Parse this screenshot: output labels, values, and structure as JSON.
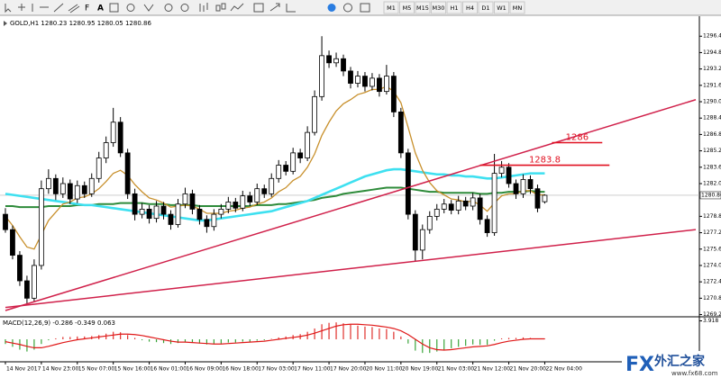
{
  "toolbar": {
    "timeframes": [
      "M1",
      "M5",
      "M15",
      "M30",
      "H1",
      "H4",
      "D1",
      "W1",
      "MN"
    ]
  },
  "watermark": {
    "logo": "FX",
    "name": "外汇之家",
    "url": "www.fx68.com"
  },
  "chart_data": {
    "type": "candlestick",
    "title": "GOLD,H1",
    "xlim": [
      -0.75,
      96.5
    ],
    "ylim": [
      1269.16,
      1298.18
    ],
    "yticks": [
      {
        "value": 1269.2,
        "label": "1269.20"
      },
      {
        "value": 1270.8,
        "label": "1270.80"
      },
      {
        "value": 1272.4,
        "label": "1272.40"
      },
      {
        "value": 1274,
        "label": "1274.00"
      },
      {
        "value": 1275.6,
        "label": "1275.60"
      },
      {
        "value": 1277.2,
        "label": "1277.20"
      },
      {
        "value": 1278.8,
        "label": "1278.80"
      },
      {
        "value": 1282,
        "label": "1282.00"
      },
      {
        "value": 1283.6,
        "label": "1283.60"
      },
      {
        "value": 1285.2,
        "label": "1285.20"
      },
      {
        "value": 1286.8,
        "label": "1286.80"
      },
      {
        "value": 1288.4,
        "label": "1288.40"
      },
      {
        "value": 1290,
        "label": "1290.00"
      },
      {
        "value": 1291.6,
        "label": "1291.60"
      },
      {
        "value": 1293.2,
        "label": "1293.20"
      },
      {
        "value": 1294.8,
        "label": "1294.80"
      },
      {
        "value": 1296.4,
        "label": "1296.40"
      }
    ],
    "categories": [
      "14 Nov 2017",
      null,
      null,
      null,
      null,
      "14 Nov 23:00",
      null,
      null,
      null,
      null,
      "15 Nov 07:00",
      null,
      null,
      null,
      null,
      "15 Nov 16:00",
      null,
      null,
      null,
      null,
      "16 Nov 01:00",
      null,
      null,
      null,
      null,
      "16 Nov 09:00",
      null,
      null,
      null,
      null,
      "16 Nov 18:00",
      null,
      null,
      null,
      null,
      "17 Nov 03:00",
      null,
      null,
      null,
      null,
      "17 Nov 11:00",
      null,
      null,
      null,
      null,
      "17 Nov 20:00",
      null,
      null,
      null,
      null,
      "20 Nov 11:00",
      null,
      null,
      null,
      null,
      "20 Nov 19:00",
      null,
      null,
      null,
      null,
      "21 Nov 03:00",
      null,
      null,
      null,
      null,
      "21 Nov 12:00",
      null,
      null,
      null,
      null,
      "21 Nov 20:00",
      null,
      null,
      null,
      null,
      "22 Nov 04:00"
    ],
    "up_color": "#ffffff",
    "down_color": "#000000",
    "edge_color": "#000000",
    "ohlc": [
      [
        1279.0,
        1279.6,
        1277.2,
        1277.5
      ],
      [
        1277.5,
        1277.9,
        1274.6,
        1275.0
      ],
      [
        1275.0,
        1275.4,
        1272.0,
        1272.5
      ],
      [
        1272.5,
        1273.0,
        1270.2,
        1270.8
      ],
      [
        1270.8,
        1274.6,
        1270.5,
        1274.0
      ],
      [
        1274.0,
        1282.3,
        1273.6,
        1281.5
      ],
      [
        1281.5,
        1283.4,
        1281.0,
        1282.5
      ],
      [
        1282.5,
        1282.9,
        1280.4,
        1281.0
      ],
      [
        1281.0,
        1282.6,
        1280.6,
        1282.0
      ],
      [
        1282.0,
        1282.4,
        1280.0,
        1280.5
      ],
      [
        1280.5,
        1282.3,
        1280.1,
        1281.8
      ],
      [
        1281.8,
        1282.2,
        1280.6,
        1281.0
      ],
      [
        1281.0,
        1283.0,
        1280.7,
        1282.5
      ],
      [
        1282.5,
        1285.1,
        1282.1,
        1284.5
      ],
      [
        1284.5,
        1286.6,
        1284.0,
        1286.0
      ],
      [
        1286.0,
        1289.4,
        1285.6,
        1288.0
      ],
      [
        1288.0,
        1288.5,
        1284.6,
        1285.0
      ],
      [
        1285.0,
        1285.4,
        1280.5,
        1281.0
      ],
      [
        1281.0,
        1281.5,
        1278.4,
        1279.0
      ],
      [
        1279.0,
        1280.1,
        1278.6,
        1279.5
      ],
      [
        1279.5,
        1279.9,
        1278.1,
        1278.6
      ],
      [
        1278.6,
        1280.3,
        1278.2,
        1279.8
      ],
      [
        1279.8,
        1280.2,
        1278.5,
        1279.0
      ],
      [
        1279.0,
        1279.4,
        1277.5,
        1278.0
      ],
      [
        1278.0,
        1280.5,
        1277.7,
        1280.0
      ],
      [
        1280.0,
        1281.6,
        1279.6,
        1281.0
      ],
      [
        1281.0,
        1281.4,
        1279.0,
        1279.5
      ],
      [
        1279.5,
        1279.9,
        1278.0,
        1278.5
      ],
      [
        1278.5,
        1278.9,
        1277.2,
        1277.8
      ],
      [
        1277.8,
        1279.5,
        1277.4,
        1279.0
      ],
      [
        1279.0,
        1280.0,
        1278.6,
        1279.5
      ],
      [
        1279.5,
        1280.7,
        1279.1,
        1280.2
      ],
      [
        1280.2,
        1280.6,
        1279.2,
        1279.6
      ],
      [
        1279.6,
        1281.3,
        1279.3,
        1280.8
      ],
      [
        1280.8,
        1281.2,
        1279.8,
        1280.2
      ],
      [
        1280.2,
        1282.0,
        1279.9,
        1281.5
      ],
      [
        1281.5,
        1281.9,
        1280.6,
        1281.0
      ],
      [
        1281.0,
        1283.0,
        1280.7,
        1282.5
      ],
      [
        1282.5,
        1284.3,
        1282.1,
        1283.8
      ],
      [
        1283.8,
        1284.2,
        1282.8,
        1283.2
      ],
      [
        1283.2,
        1285.5,
        1282.9,
        1285.0
      ],
      [
        1285.0,
        1285.4,
        1284.0,
        1284.5
      ],
      [
        1284.5,
        1287.6,
        1284.2,
        1287.0
      ],
      [
        1287.0,
        1291.1,
        1286.7,
        1290.5
      ],
      [
        1290.5,
        1296.4,
        1290.1,
        1294.5
      ],
      [
        1294.5,
        1295.0,
        1293.3,
        1293.8
      ],
      [
        1293.8,
        1294.8,
        1293.4,
        1294.2
      ],
      [
        1294.2,
        1294.6,
        1292.5,
        1293.0
      ],
      [
        1293.0,
        1293.4,
        1291.3,
        1291.8
      ],
      [
        1291.8,
        1293.0,
        1291.4,
        1292.5
      ],
      [
        1292.5,
        1292.9,
        1291.0,
        1291.5
      ],
      [
        1291.5,
        1292.8,
        1291.1,
        1292.3
      ],
      [
        1292.3,
        1292.7,
        1290.5,
        1291.0
      ],
      [
        1291.0,
        1293.6,
        1290.7,
        1292.5
      ],
      [
        1292.5,
        1292.9,
        1288.5,
        1289.0
      ],
      [
        1289.0,
        1289.4,
        1284.5,
        1285.0
      ],
      [
        1285.0,
        1285.4,
        1278.5,
        1279.0
      ],
      [
        1279.0,
        1279.4,
        1274.4,
        1275.5
      ],
      [
        1275.5,
        1278.0,
        1274.6,
        1277.5
      ],
      [
        1277.5,
        1279.3,
        1277.1,
        1278.8
      ],
      [
        1278.8,
        1280.0,
        1278.4,
        1279.5
      ],
      [
        1279.5,
        1280.5,
        1279.1,
        1280.0
      ],
      [
        1280.0,
        1280.4,
        1279.0,
        1279.4
      ],
      [
        1279.4,
        1280.8,
        1279.0,
        1280.3
      ],
      [
        1280.3,
        1280.7,
        1279.4,
        1279.8
      ],
      [
        1279.8,
        1281.1,
        1279.4,
        1280.6
      ],
      [
        1280.6,
        1281.0,
        1278.0,
        1278.5
      ],
      [
        1278.5,
        1278.9,
        1276.8,
        1277.2
      ],
      [
        1277.2,
        1284.9,
        1276.9,
        1283.0
      ],
      [
        1283.0,
        1284.2,
        1282.6,
        1283.6
      ],
      [
        1283.6,
        1284.0,
        1281.6,
        1282.0
      ],
      [
        1282.0,
        1282.4,
        1280.5,
        1281.0
      ],
      [
        1281.0,
        1282.9,
        1280.6,
        1282.4
      ],
      [
        1282.4,
        1282.8,
        1281.0,
        1281.5
      ],
      [
        1281.5,
        1281.9,
        1279.2,
        1279.6
      ],
      [
        1280.23,
        1280.95,
        1280.05,
        1280.86
      ]
    ],
    "indicators": [
      {
        "color": "#2e8b3a",
        "width": 2,
        "values": [
          1279.8,
          1279.8,
          1279.7,
          1279.7,
          1279.7,
          1279.7,
          1279.8,
          1279.8,
          1279.8,
          1279.8,
          1279.9,
          1279.9,
          1279.9,
          1280.0,
          1280.0,
          1280.0,
          1280.1,
          1280.1,
          1280.1,
          1280.1,
          1280.0,
          1280.0,
          1280.0,
          1279.9,
          1279.9,
          1279.9,
          1279.9,
          1279.8,
          1279.8,
          1279.8,
          1279.8,
          1279.8,
          1279.8,
          1279.8,
          1279.8,
          1279.9,
          1279.9,
          1279.9,
          1280.0,
          1280.0,
          1280.1,
          1280.2,
          1280.3,
          1280.4,
          1280.6,
          1280.7,
          1280.8,
          1281.0,
          1281.1,
          1281.2,
          1281.3,
          1281.4,
          1281.5,
          1281.6,
          1281.6,
          1281.6,
          1281.5,
          1281.4,
          1281.3,
          1281.2,
          1281.2,
          1281.1,
          1281.1,
          1281.1,
          1281.1,
          1281.1,
          1281.0,
          1281.0,
          1281.1,
          1281.1,
          1281.2,
          1281.2,
          1281.2,
          1281.3,
          1281.2,
          1281.2
        ]
      },
      {
        "color": "#3ee0f0",
        "width": 2.6,
        "values": [
          1281.0,
          1280.9,
          1280.8,
          1280.7,
          1280.6,
          1280.5,
          1280.4,
          1280.3,
          1280.2,
          1280.1,
          1280.0,
          1279.9,
          1279.9,
          1279.8,
          1279.7,
          1279.6,
          1279.5,
          1279.4,
          1279.3,
          1279.2,
          1279.1,
          1279.0,
          1278.9,
          1278.8,
          1278.7,
          1278.6,
          1278.5,
          1278.4,
          1278.4,
          1278.5,
          1278.6,
          1278.7,
          1278.8,
          1278.9,
          1279.0,
          1279.1,
          1279.2,
          1279.3,
          1279.5,
          1279.7,
          1279.9,
          1280.1,
          1280.3,
          1280.6,
          1280.9,
          1281.2,
          1281.5,
          1281.8,
          1282.1,
          1282.4,
          1282.7,
          1282.9,
          1283.1,
          1283.3,
          1283.4,
          1283.4,
          1283.3,
          1283.2,
          1283.1,
          1283.0,
          1282.9,
          1282.9,
          1282.8,
          1282.8,
          1282.7,
          1282.7,
          1282.6,
          1282.5,
          1282.5,
          1282.6,
          1282.7,
          1282.8,
          1282.9,
          1283.0,
          1283.0,
          1283.0
        ]
      },
      {
        "color": "#c8902c",
        "width": 1.3,
        "values": [
          1278.8,
          1277.9,
          1276.8,
          1275.8,
          1275.6,
          1277.0,
          1278.4,
          1279.2,
          1280.0,
          1280.2,
          1280.6,
          1280.7,
          1281.0,
          1281.5,
          1282.2,
          1283.0,
          1283.3,
          1282.8,
          1281.9,
          1281.2,
          1280.6,
          1280.4,
          1280.1,
          1279.7,
          1279.8,
          1279.9,
          1279.8,
          1279.5,
          1279.1,
          1279.1,
          1279.1,
          1279.3,
          1279.4,
          1279.6,
          1279.7,
          1280.0,
          1280.2,
          1280.6,
          1281.2,
          1281.6,
          1282.3,
          1282.7,
          1283.6,
          1284.9,
          1286.7,
          1288.0,
          1289.1,
          1289.8,
          1290.2,
          1290.7,
          1290.9,
          1291.2,
          1291.2,
          1291.5,
          1291.0,
          1289.9,
          1287.5,
          1285.0,
          1283.3,
          1282.1,
          1281.3,
          1280.9,
          1280.5,
          1280.4,
          1280.2,
          1280.3,
          1279.9,
          1279.3,
          1280.1,
          1280.8,
          1281.0,
          1281.0,
          1281.3,
          1281.3,
          1280.9,
          1280.9
        ]
      }
    ],
    "trendlines": [
      {
        "color": "#d0204a",
        "x": [
          0,
          96
        ],
        "y": [
          1269.6,
          1290.2
        ]
      },
      {
        "color": "#d0204a",
        "x": [
          0,
          96
        ],
        "y": [
          1269.9,
          1277.5
        ]
      }
    ],
    "levels": [
      {
        "color": "#e01020",
        "value": 1286,
        "x": [
          76,
          83
        ]
      },
      {
        "color": "#e01020",
        "value": 1283.8,
        "x": [
          66,
          84
        ]
      }
    ],
    "macd": {
      "title": "MACD(12,26,9) -0.286 -0.349 0.063",
      "ylim": [
        -4.4,
        4.4
      ],
      "yticks": [
        3.918
      ],
      "positive_color": "#e0302c",
      "negative_color": "#3aa43a",
      "signal_color": "#e01818",
      "histogram": [
        -1.0,
        -1.6,
        -2.2,
        -2.6,
        -2.2,
        -1.0,
        -0.2,
        0.2,
        0.5,
        0.5,
        0.6,
        0.6,
        0.7,
        0.9,
        1.2,
        1.6,
        1.5,
        0.9,
        0.3,
        -0.2,
        -0.5,
        -0.6,
        -0.8,
        -1.0,
        -0.8,
        -0.6,
        -0.7,
        -0.9,
        -1.1,
        -1.0,
        -0.9,
        -0.7,
        -0.7,
        -0.5,
        -0.5,
        -0.3,
        -0.2,
        0.1,
        0.4,
        0.6,
        0.9,
        1.1,
        1.6,
        2.3,
        3.2,
        3.5,
        3.6,
        3.4,
        3.1,
        2.9,
        2.7,
        2.6,
        2.3,
        2.2,
        1.6,
        0.6,
        -0.9,
        -2.4,
        -2.9,
        -2.9,
        -2.6,
        -2.2,
        -1.9,
        -1.6,
        -1.4,
        -1.1,
        -1.2,
        -1.2,
        -0.3,
        0.2,
        0.3,
        0.3,
        0.4,
        0.3,
        0.0,
        0.1
      ],
      "signal": [
        -0.5,
        -0.8,
        -1.1,
        -1.5,
        -1.8,
        -1.8,
        -1.5,
        -1.1,
        -0.7,
        -0.4,
        -0.1,
        0.1,
        0.3,
        0.5,
        0.7,
        0.9,
        1.1,
        1.1,
        1.0,
        0.8,
        0.5,
        0.2,
        -0.1,
        -0.4,
        -0.6,
        -0.6,
        -0.7,
        -0.8,
        -0.9,
        -1.0,
        -1.0,
        -0.9,
        -0.8,
        -0.7,
        -0.6,
        -0.5,
        -0.4,
        -0.2,
        0.0,
        0.2,
        0.4,
        0.6,
        0.9,
        1.3,
        1.8,
        2.3,
        2.8,
        3.1,
        3.2,
        3.2,
        3.1,
        3.0,
        2.8,
        2.6,
        2.3,
        1.8,
        1.0,
        0.0,
        -1.0,
        -1.8,
        -2.2,
        -2.3,
        -2.2,
        -2.0,
        -1.8,
        -1.6,
        -1.5,
        -1.4,
        -1.1,
        -0.7,
        -0.4,
        -0.2,
        0.0,
        0.1,
        0.1,
        0.1
      ]
    }
  }
}
